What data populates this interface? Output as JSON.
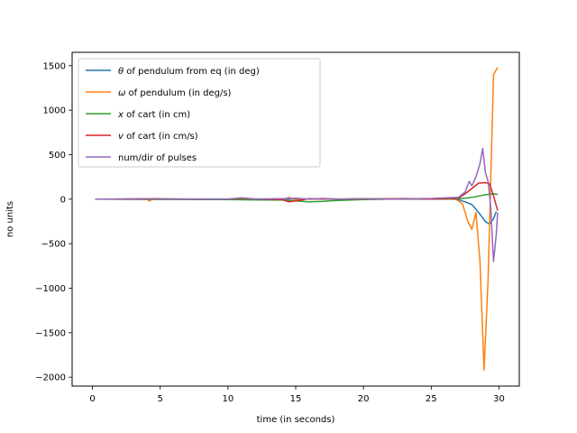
{
  "chart_data": {
    "type": "line",
    "title": "",
    "xlabel": "time (in seconds)",
    "ylabel": "no units",
    "xlim": [
      -1.5,
      31.5
    ],
    "ylim": [
      -2100,
      1650
    ],
    "xticks": [
      0,
      5,
      10,
      15,
      20,
      25,
      30
    ],
    "yticks": [
      -2000,
      -1500,
      -1000,
      -500,
      0,
      500,
      1000,
      1500
    ],
    "xtick_labels": [
      "0",
      "5",
      "10",
      "15",
      "20",
      "25",
      "30"
    ],
    "ytick_labels": [
      "−2000",
      "−1500",
      "−1000",
      "−500",
      "0",
      "500",
      "1000",
      "1500"
    ],
    "grid": false,
    "legend_position": "upper-left",
    "series": [
      {
        "name_prefix": "θ",
        "name_suffix": " of pendulum from eq (in deg)",
        "color": "#1f77b4",
        "x": [
          0.2,
          4,
          8,
          11,
          14,
          15,
          16,
          17,
          19,
          21,
          23,
          25,
          26.5,
          27,
          27.5,
          28,
          28.5,
          29,
          29.3,
          29.6,
          29.8
        ],
        "y": [
          0,
          2,
          0,
          3,
          0,
          4,
          0,
          3,
          0,
          2,
          0,
          3,
          0,
          -5,
          -30,
          -60,
          -150,
          -250,
          -280,
          -220,
          -140
        ]
      },
      {
        "name_prefix": "ω",
        "name_suffix": " of pendulum (in deg/s)",
        "color": "#ff7f0e",
        "x": [
          0.2,
          3,
          4,
          4.2,
          4.5,
          6,
          8,
          10,
          11,
          12,
          14,
          14.5,
          15,
          16,
          18,
          20,
          22,
          23,
          25,
          26.8,
          27.3,
          27.7,
          28,
          28.3,
          28.6,
          28.9,
          29.2,
          29.6,
          29.9
        ],
        "y": [
          0,
          0,
          5,
          -20,
          8,
          0,
          -5,
          0,
          8,
          0,
          -8,
          20,
          -10,
          5,
          0,
          5,
          0,
          8,
          0,
          0,
          -50,
          -250,
          -340,
          -150,
          -700,
          -1920,
          -900,
          1400,
          1480
        ]
      },
      {
        "name_prefix": "x",
        "name_suffix": " of cart (in cm)",
        "color": "#2ca02c",
        "x": [
          0.2,
          5,
          10,
          12,
          14,
          15,
          16,
          17,
          18,
          20,
          22,
          25,
          26,
          27,
          27.5,
          28,
          28.5,
          29,
          29.5,
          29.9
        ],
        "y": [
          0,
          -3,
          -5,
          -8,
          -10,
          -20,
          -30,
          -25,
          -15,
          -5,
          0,
          2,
          0,
          5,
          10,
          20,
          35,
          50,
          60,
          55
        ]
      },
      {
        "name_prefix": "v",
        "name_suffix": " of cart  (in cm/s)",
        "color": "#d62728",
        "x": [
          0.2,
          5,
          10,
          11,
          12,
          14,
          14.5,
          15,
          16,
          18,
          20,
          23,
          25,
          27,
          27.5,
          28,
          28.5,
          29,
          29.3,
          29.6,
          29.9
        ],
        "y": [
          0,
          3,
          0,
          10,
          0,
          -5,
          -30,
          -20,
          5,
          0,
          3,
          5,
          0,
          10,
          60,
          120,
          180,
          185,
          175,
          40,
          -130
        ]
      },
      {
        "name_prefix": "",
        "name_suffix": "num/dir of pulses",
        "color": "#9467bd",
        "x": [
          0.2,
          4,
          6,
          10,
          11,
          12,
          14,
          15,
          16,
          17,
          18,
          20,
          22,
          25,
          27,
          27.5,
          27.8,
          28,
          28.3,
          28.6,
          28.8,
          29,
          29.2,
          29.4,
          29.6,
          29.8,
          29.9
        ],
        "y": [
          0,
          5,
          0,
          0,
          15,
          0,
          5,
          10,
          0,
          8,
          0,
          5,
          0,
          8,
          20,
          80,
          200,
          150,
          250,
          400,
          570,
          300,
          200,
          -100,
          -700,
          -400,
          -150
        ]
      }
    ]
  }
}
